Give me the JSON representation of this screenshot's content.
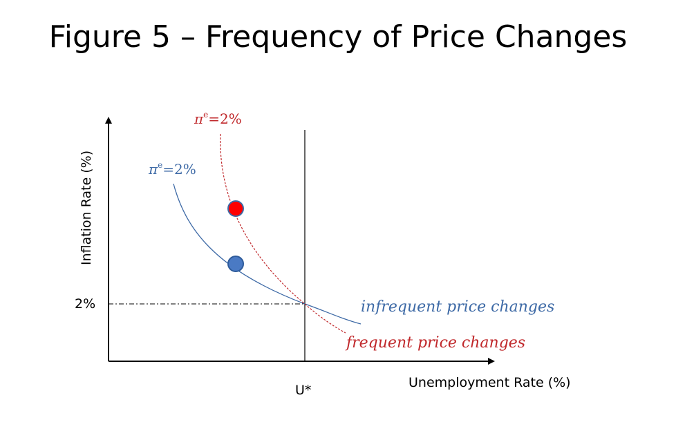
{
  "title": "Figure 5 – Frequency of Price Changes",
  "axes": {
    "y_label": "Inflation Rate (%)",
    "x_label": "Unemployment Rate (%)",
    "y_tick": "2%",
    "x_tick": "U*"
  },
  "curves": {
    "infrequent": {
      "expectation_symbol": "π",
      "expectation_superscript": "e",
      "expectation_value": "=2%",
      "label": "infrequent price changes",
      "color": "#3e6aa6"
    },
    "frequent": {
      "expectation_symbol": "π",
      "expectation_superscript": "e",
      "expectation_value": "=2%",
      "label": "frequent price changes",
      "color": "#c0282b"
    }
  },
  "points": {
    "blue_fill": "#4a7ac4",
    "blue_stroke": "#2e5b9a",
    "red_fill": "#ff0000",
    "red_stroke": "#3e6aa6"
  }
}
